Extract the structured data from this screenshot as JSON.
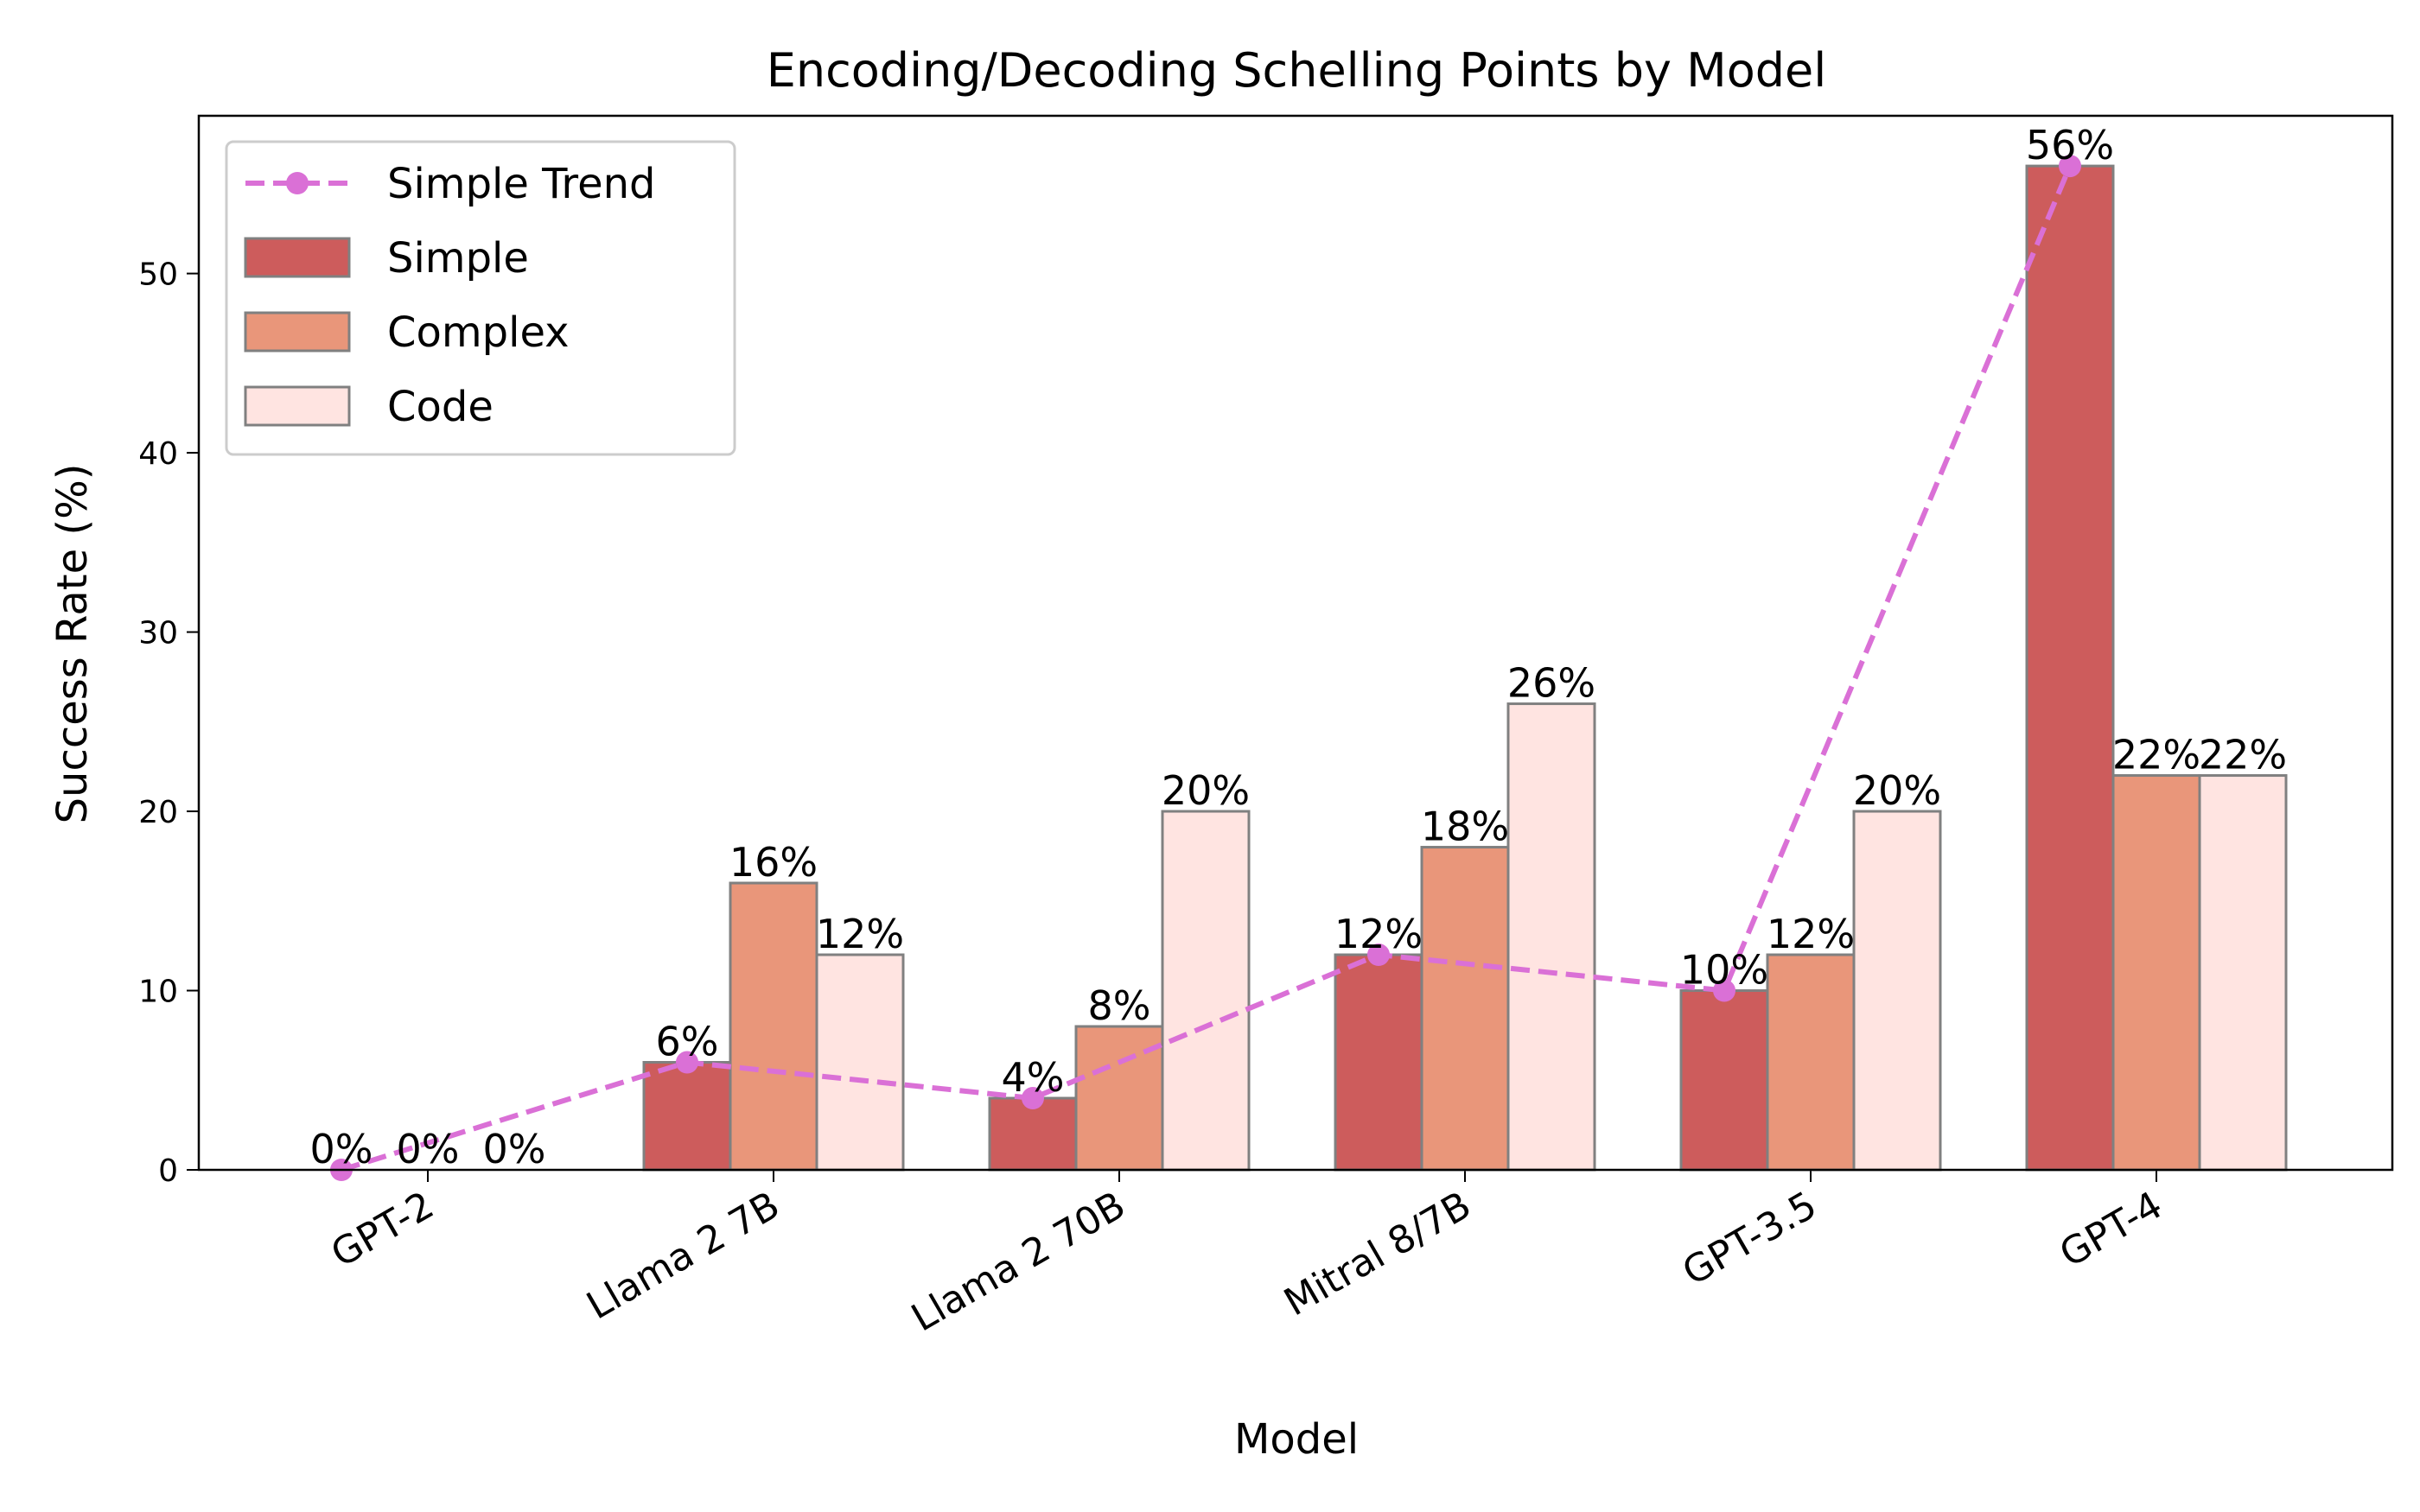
{
  "chart_data": {
    "type": "bar",
    "title": "Encoding/Decoding Schelling Points by Model",
    "xlabel": "Model",
    "ylabel": "Success Rate (%)",
    "ylim": [
      0,
      58.8
    ],
    "yticks": [
      0,
      10,
      20,
      30,
      40,
      50
    ],
    "categories": [
      "GPT-2",
      "Llama 2 7B",
      "Llama 2 70B",
      "Mitral 8/7B",
      "GPT-3.5",
      "GPT-4"
    ],
    "series": [
      {
        "name": "Simple",
        "kind": "bar",
        "color": "#cd5c5c",
        "values": [
          0,
          6,
          4,
          12,
          10,
          56
        ]
      },
      {
        "name": "Complex",
        "kind": "bar",
        "color": "#e9967a",
        "values": [
          0,
          16,
          8,
          18,
          12,
          22
        ]
      },
      {
        "name": "Code",
        "kind": "bar",
        "color": "#ffe4e1",
        "values": [
          0,
          12,
          20,
          26,
          20,
          22
        ]
      },
      {
        "name": "Simple Trend",
        "kind": "line",
        "color": "#da70d6",
        "values": [
          0,
          6,
          4,
          12,
          10,
          56
        ]
      }
    ],
    "value_label_suffix": "%",
    "bar_edge_color": "#808080",
    "legend": {
      "position": "top-left"
    },
    "grid": false
  }
}
